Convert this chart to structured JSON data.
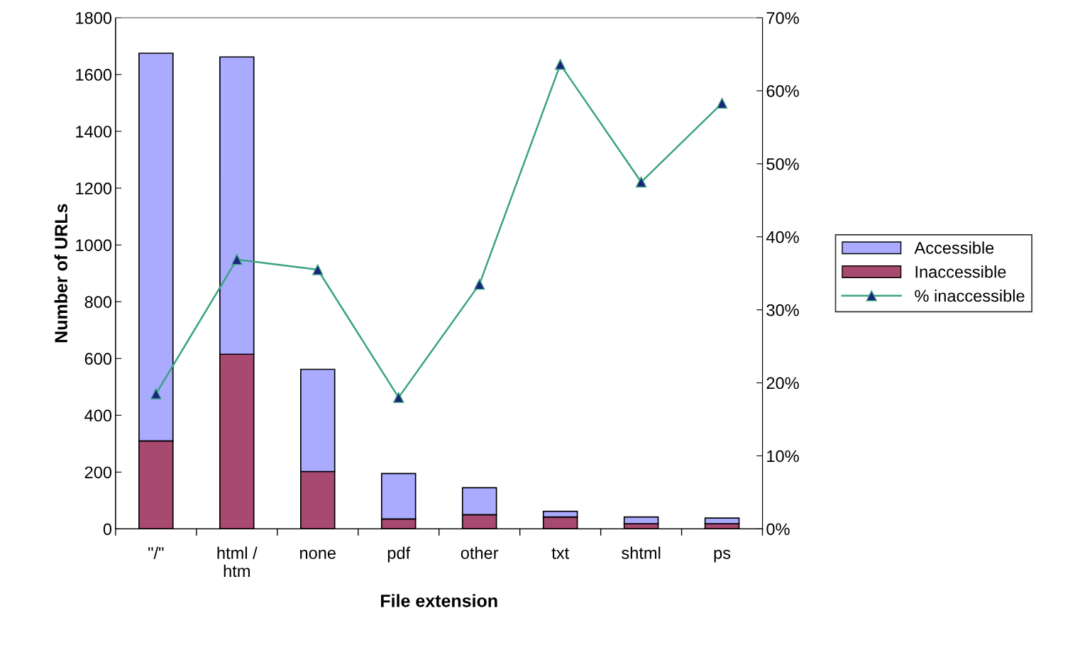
{
  "chart_data": {
    "type": "bar",
    "stacked": true,
    "xlabel": "File extension",
    "ylabel": "Number of URLs",
    "categories": [
      "\"/\"",
      "html /\nhtm",
      "none",
      "pdf",
      "other",
      "txt",
      "shtml",
      "ps"
    ],
    "series": [
      {
        "name": "Inaccessible",
        "color": "#a8496f",
        "values": [
          310,
          615,
          202,
          35,
          50,
          42,
          18,
          18
        ]
      },
      {
        "name": "Accessible",
        "color": "#aaaaff",
        "values": [
          1365,
          1047,
          360,
          160,
          95,
          20,
          24,
          20
        ]
      },
      {
        "name": "% inaccessible",
        "type": "line",
        "axis": "y2",
        "color": "#3aa37f",
        "marker": "triangle",
        "values": [
          18.5,
          36.9,
          35.5,
          18.0,
          33.5,
          63.6,
          47.5,
          58.3
        ]
      }
    ],
    "ylim": [
      0,
      1800
    ],
    "yticks": [
      0,
      200,
      400,
      600,
      800,
      1000,
      1200,
      1400,
      1600,
      1800
    ],
    "y2lim": [
      0,
      70
    ],
    "y2ticks": [
      {
        "value": 0,
        "label": "0%"
      },
      {
        "value": 10,
        "label": "10%"
      },
      {
        "value": 20,
        "label": "20%"
      },
      {
        "value": 30,
        "label": "30%"
      },
      {
        "value": 40,
        "label": "40%"
      },
      {
        "value": 50,
        "label": "50%"
      },
      {
        "value": 60,
        "label": "60%"
      },
      {
        "value": 70,
        "label": "70%"
      }
    ],
    "legend": "right",
    "grid": false
  }
}
